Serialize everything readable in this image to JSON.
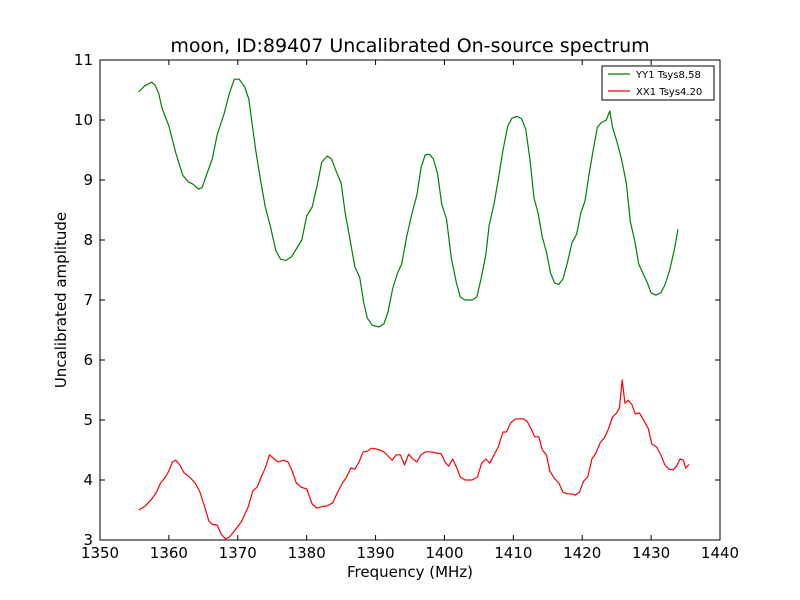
{
  "chart_data": {
    "type": "line",
    "title": "moon, ID:89407 Uncalibrated On-source spectrum",
    "xlabel": "Frequency (MHz)",
    "ylabel": "Uncalibrated amplitude",
    "xlim": [
      1350,
      1440
    ],
    "ylim": [
      3,
      11
    ],
    "xticks": [
      "1350",
      "1360",
      "1370",
      "1380",
      "1390",
      "1400",
      "1410",
      "1420",
      "1430",
      "1440"
    ],
    "yticks": [
      "3",
      "4",
      "5",
      "6",
      "7",
      "8",
      "9",
      "10",
      "11"
    ],
    "grid": false,
    "legend_position": "top-right",
    "series": [
      {
        "name": "YY1 Tsys8.58",
        "color": "#008000",
        "points": [
          [
            1355.6,
            10.47
          ],
          [
            1356.5,
            10.57
          ],
          [
            1357.5,
            10.63
          ],
          [
            1358.0,
            10.58
          ],
          [
            1358.5,
            10.45
          ],
          [
            1359.0,
            10.2
          ],
          [
            1360.0,
            9.9
          ],
          [
            1361.0,
            9.45
          ],
          [
            1362.0,
            9.08
          ],
          [
            1362.8,
            8.97
          ],
          [
            1363.5,
            8.93
          ],
          [
            1364.3,
            8.85
          ],
          [
            1364.8,
            8.87
          ],
          [
            1365.5,
            9.1
          ],
          [
            1366.3,
            9.35
          ],
          [
            1367.0,
            9.75
          ],
          [
            1368.0,
            10.1
          ],
          [
            1368.8,
            10.45
          ],
          [
            1369.5,
            10.68
          ],
          [
            1370.2,
            10.68
          ],
          [
            1371.0,
            10.55
          ],
          [
            1371.6,
            10.35
          ],
          [
            1372.0,
            10.0
          ],
          [
            1372.6,
            9.5
          ],
          [
            1373.3,
            9.0
          ],
          [
            1374.0,
            8.55
          ],
          [
            1374.8,
            8.2
          ],
          [
            1375.5,
            7.83
          ],
          [
            1376.2,
            7.68
          ],
          [
            1377.0,
            7.66
          ],
          [
            1377.8,
            7.72
          ],
          [
            1378.5,
            7.85
          ],
          [
            1379.3,
            8.0
          ],
          [
            1380.0,
            8.4
          ],
          [
            1380.8,
            8.55
          ],
          [
            1381.5,
            8.9
          ],
          [
            1382.2,
            9.3
          ],
          [
            1383.0,
            9.4
          ],
          [
            1383.6,
            9.35
          ],
          [
            1384.2,
            9.17
          ],
          [
            1385.0,
            8.95
          ],
          [
            1385.6,
            8.45
          ],
          [
            1386.3,
            8.0
          ],
          [
            1387.0,
            7.55
          ],
          [
            1387.7,
            7.38
          ],
          [
            1388.3,
            6.95
          ],
          [
            1388.8,
            6.7
          ],
          [
            1389.5,
            6.58
          ],
          [
            1390.5,
            6.55
          ],
          [
            1391.2,
            6.6
          ],
          [
            1391.8,
            6.8
          ],
          [
            1392.5,
            7.2
          ],
          [
            1393.2,
            7.45
          ],
          [
            1393.8,
            7.6
          ],
          [
            1394.5,
            8.05
          ],
          [
            1395.3,
            8.45
          ],
          [
            1396.0,
            8.75
          ],
          [
            1396.6,
            9.2
          ],
          [
            1397.2,
            9.42
          ],
          [
            1397.8,
            9.43
          ],
          [
            1398.4,
            9.35
          ],
          [
            1399.0,
            9.1
          ],
          [
            1399.6,
            8.6
          ],
          [
            1400.3,
            8.35
          ],
          [
            1401.0,
            7.7
          ],
          [
            1401.7,
            7.3
          ],
          [
            1402.3,
            7.05
          ],
          [
            1403.0,
            7.0
          ],
          [
            1404.0,
            7.0
          ],
          [
            1404.7,
            7.05
          ],
          [
            1405.3,
            7.35
          ],
          [
            1406.0,
            7.75
          ],
          [
            1406.5,
            8.25
          ],
          [
            1407.2,
            8.6
          ],
          [
            1407.8,
            9.0
          ],
          [
            1408.5,
            9.5
          ],
          [
            1409.2,
            9.9
          ],
          [
            1409.8,
            10.03
          ],
          [
            1410.5,
            10.06
          ],
          [
            1411.2,
            10.02
          ],
          [
            1411.8,
            9.85
          ],
          [
            1412.4,
            9.35
          ],
          [
            1413.0,
            8.7
          ],
          [
            1413.6,
            8.45
          ],
          [
            1414.2,
            8.05
          ],
          [
            1414.8,
            7.8
          ],
          [
            1415.4,
            7.45
          ],
          [
            1416.0,
            7.28
          ],
          [
            1416.6,
            7.26
          ],
          [
            1417.2,
            7.35
          ],
          [
            1417.8,
            7.6
          ],
          [
            1418.5,
            7.95
          ],
          [
            1419.2,
            8.1
          ],
          [
            1419.8,
            8.45
          ],
          [
            1420.4,
            8.65
          ],
          [
            1421.0,
            9.1
          ],
          [
            1421.6,
            9.5
          ],
          [
            1422.2,
            9.88
          ],
          [
            1422.8,
            9.96
          ],
          [
            1423.5,
            10.0
          ],
          [
            1424.0,
            10.15
          ],
          [
            1424.4,
            9.88
          ],
          [
            1425.0,
            9.65
          ],
          [
            1425.7,
            9.35
          ],
          [
            1426.4,
            8.95
          ],
          [
            1427.0,
            8.3
          ],
          [
            1427.6,
            8.0
          ],
          [
            1428.2,
            7.6
          ],
          [
            1428.8,
            7.45
          ],
          [
            1429.4,
            7.3
          ],
          [
            1430.0,
            7.12
          ],
          [
            1430.7,
            7.08
          ],
          [
            1431.4,
            7.12
          ],
          [
            1432.0,
            7.25
          ],
          [
            1432.7,
            7.5
          ],
          [
            1433.4,
            7.85
          ],
          [
            1433.9,
            8.18
          ]
        ]
      },
      {
        "name": "XX1 Tsys4.20",
        "color": "#ff0000",
        "points": [
          [
            1355.6,
            3.5
          ],
          [
            1356.5,
            3.56
          ],
          [
            1357.5,
            3.68
          ],
          [
            1358.2,
            3.8
          ],
          [
            1358.8,
            3.95
          ],
          [
            1359.5,
            4.05
          ],
          [
            1360.0,
            4.15
          ],
          [
            1360.5,
            4.3
          ],
          [
            1361.0,
            4.33
          ],
          [
            1361.6,
            4.25
          ],
          [
            1362.2,
            4.12
          ],
          [
            1363.0,
            4.05
          ],
          [
            1363.8,
            3.95
          ],
          [
            1364.5,
            3.8
          ],
          [
            1365.2,
            3.55
          ],
          [
            1365.8,
            3.32
          ],
          [
            1366.3,
            3.26
          ],
          [
            1367.0,
            3.25
          ],
          [
            1367.6,
            3.1
          ],
          [
            1368.2,
            3.02
          ],
          [
            1368.8,
            3.05
          ],
          [
            1369.5,
            3.15
          ],
          [
            1370.5,
            3.3
          ],
          [
            1371.5,
            3.55
          ],
          [
            1372.2,
            3.82
          ],
          [
            1372.8,
            3.88
          ],
          [
            1373.4,
            4.05
          ],
          [
            1374.0,
            4.2
          ],
          [
            1374.6,
            4.42
          ],
          [
            1375.3,
            4.35
          ],
          [
            1375.9,
            4.3
          ],
          [
            1376.6,
            4.33
          ],
          [
            1377.3,
            4.3
          ],
          [
            1377.9,
            4.15
          ],
          [
            1378.5,
            3.95
          ],
          [
            1379.2,
            3.88
          ],
          [
            1380.0,
            3.85
          ],
          [
            1380.8,
            3.6
          ],
          [
            1381.5,
            3.53
          ],
          [
            1382.3,
            3.56
          ],
          [
            1383.0,
            3.57
          ],
          [
            1383.8,
            3.62
          ],
          [
            1384.5,
            3.8
          ],
          [
            1385.2,
            3.95
          ],
          [
            1385.8,
            4.05
          ],
          [
            1386.4,
            4.2
          ],
          [
            1387.0,
            4.18
          ],
          [
            1387.6,
            4.3
          ],
          [
            1388.2,
            4.47
          ],
          [
            1388.8,
            4.48
          ],
          [
            1389.4,
            4.53
          ],
          [
            1390.0,
            4.52
          ],
          [
            1390.6,
            4.5
          ],
          [
            1391.2,
            4.47
          ],
          [
            1391.8,
            4.4
          ],
          [
            1392.4,
            4.33
          ],
          [
            1393.0,
            4.42
          ],
          [
            1393.6,
            4.42
          ],
          [
            1394.2,
            4.25
          ],
          [
            1394.8,
            4.43
          ],
          [
            1395.4,
            4.35
          ],
          [
            1396.0,
            4.3
          ],
          [
            1396.6,
            4.42
          ],
          [
            1397.3,
            4.47
          ],
          [
            1398.0,
            4.47
          ],
          [
            1398.8,
            4.45
          ],
          [
            1399.5,
            4.44
          ],
          [
            1400.1,
            4.3
          ],
          [
            1400.6,
            4.23
          ],
          [
            1401.2,
            4.35
          ],
          [
            1401.8,
            4.2
          ],
          [
            1402.3,
            4.05
          ],
          [
            1403.0,
            4.0
          ],
          [
            1404.0,
            4.0
          ],
          [
            1404.8,
            4.05
          ],
          [
            1405.4,
            4.28
          ],
          [
            1406.0,
            4.35
          ],
          [
            1406.6,
            4.28
          ],
          [
            1407.2,
            4.42
          ],
          [
            1407.8,
            4.55
          ],
          [
            1408.5,
            4.8
          ],
          [
            1409.0,
            4.8
          ],
          [
            1409.6,
            4.95
          ],
          [
            1410.2,
            5.01
          ],
          [
            1410.8,
            5.02
          ],
          [
            1411.4,
            5.02
          ],
          [
            1412.0,
            4.98
          ],
          [
            1412.6,
            4.85
          ],
          [
            1413.1,
            4.72
          ],
          [
            1413.7,
            4.72
          ],
          [
            1414.2,
            4.5
          ],
          [
            1414.8,
            4.42
          ],
          [
            1415.3,
            4.15
          ],
          [
            1416.0,
            4.02
          ],
          [
            1416.6,
            3.95
          ],
          [
            1417.2,
            3.8
          ],
          [
            1417.8,
            3.77
          ],
          [
            1418.4,
            3.77
          ],
          [
            1419.0,
            3.75
          ],
          [
            1419.6,
            3.8
          ],
          [
            1420.2,
            3.98
          ],
          [
            1420.8,
            4.05
          ],
          [
            1421.4,
            4.35
          ],
          [
            1422.0,
            4.45
          ],
          [
            1422.6,
            4.62
          ],
          [
            1423.2,
            4.7
          ],
          [
            1423.8,
            4.85
          ],
          [
            1424.4,
            5.05
          ],
          [
            1425.0,
            5.12
          ],
          [
            1425.4,
            5.2
          ],
          [
            1425.8,
            5.67
          ],
          [
            1426.2,
            5.28
          ],
          [
            1426.7,
            5.33
          ],
          [
            1427.2,
            5.26
          ],
          [
            1427.7,
            5.1
          ],
          [
            1428.3,
            5.12
          ],
          [
            1429.0,
            4.98
          ],
          [
            1429.6,
            4.85
          ],
          [
            1430.1,
            4.6
          ],
          [
            1430.8,
            4.55
          ],
          [
            1431.4,
            4.42
          ],
          [
            1432.0,
            4.25
          ],
          [
            1432.6,
            4.18
          ],
          [
            1433.2,
            4.17
          ],
          [
            1433.7,
            4.23
          ],
          [
            1434.2,
            4.35
          ],
          [
            1434.7,
            4.33
          ],
          [
            1435.0,
            4.2
          ],
          [
            1435.5,
            4.26
          ]
        ]
      }
    ]
  }
}
